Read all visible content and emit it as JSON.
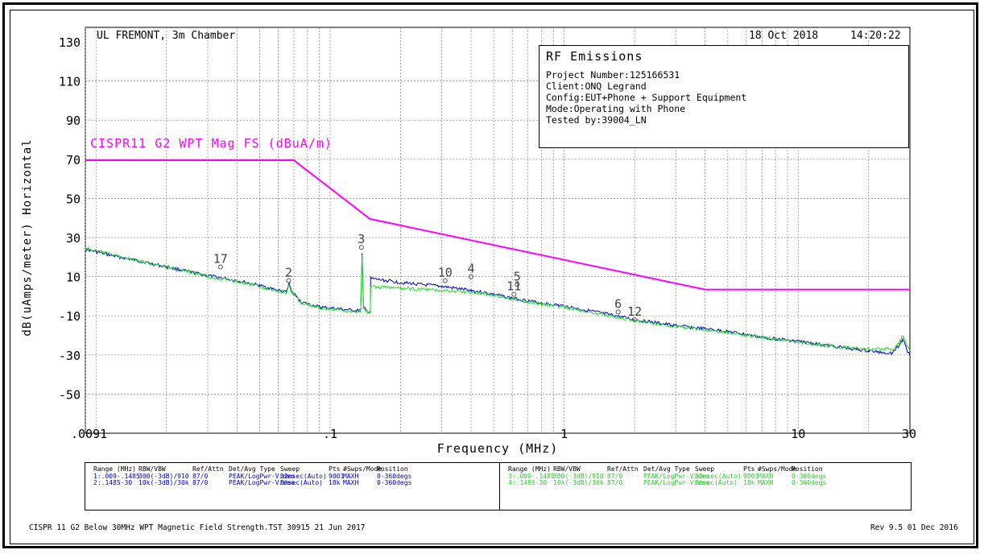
{
  "header": {
    "site": "UL FREMONT, 3m Chamber",
    "date": "18 Oct 2018",
    "time": "14:20:22"
  },
  "info": {
    "title": "RF Emissions",
    "lines": [
      "Project Number:125166531",
      "Client:ONQ Legrand",
      "Config:EUT+Phone + Support Equipment",
      "Mode:Operating with Phone",
      "Tested by:39004_LN"
    ]
  },
  "footer": {
    "left": "CISPR 11 G2 Below 30MHz WPT Magnetic Field Strength.TST 30915 21 Jun 2017",
    "right": "Rev 9.5 01 Dec 2016"
  },
  "sweep_table": {
    "headers": [
      "Range (MHz)",
      "RBW/VBW",
      "Ref/Attn",
      "Det/Avg Type",
      "Sweep",
      "Pts",
      "#Swps/Mode",
      "Position"
    ],
    "left_rows": [
      [
        "1:.009-.1485",
        "300(-3dB)/910",
        "87/0",
        "PEAK/LogPwr-Video",
        "32msec(Auto)",
        "9001",
        "MAXH",
        "0-360degs"
      ],
      [
        "2:.1485-30",
        "10k(-3dB)/30k",
        "87/0",
        "PEAK/LogPwr-Video",
        "8msec(Auto)",
        "18k",
        "MAXH",
        "0-360degs"
      ]
    ],
    "right_rows": [
      [
        "3:.009-.1485",
        "300(-3dB)/910",
        "87/0",
        "PEAK/LogPwr-Video",
        "32msec(Auto)",
        "9001",
        "MAXH",
        "0-360degs"
      ],
      [
        "4:.1485-30",
        "10k(-3dB)/30k",
        "87/0",
        "PEAK/LogPwr-Video",
        "8msec(Auto)",
        "18k",
        "MAXH",
        "0-360degs"
      ]
    ],
    "colors": {
      "left": "#0000cc",
      "right": "#33cc33"
    }
  },
  "chart_data": {
    "type": "line",
    "xlabel": "Frequency (MHz)",
    "ylabel": "dB(uAmps/meter) Horizontal",
    "xscale": "log",
    "xlim": [
      0.009,
      30
    ],
    "ylim": [
      -70,
      130
    ],
    "grid": true,
    "y_ticks": [
      130,
      110,
      90,
      70,
      50,
      30,
      10,
      -10,
      -30,
      -50
    ],
    "x_tick_labels": [
      {
        "value": 0.009,
        "label": ".0091"
      },
      {
        "value": 0.1,
        "label": ".1"
      },
      {
        "value": 1,
        "label": "1"
      },
      {
        "value": 10,
        "label": "10"
      },
      {
        "value": 30,
        "label": "30"
      }
    ],
    "limit_line": {
      "name": "CISPR11 G2 WPT Mag FS (dBuA/m)",
      "color": "#ff00ff",
      "points": [
        [
          0.009,
          69.5
        ],
        [
          0.07,
          69.5
        ],
        [
          0.148,
          39.5
        ],
        [
          4,
          3.4
        ],
        [
          30,
          3.4
        ]
      ]
    },
    "series": [
      {
        "color": "#0000cc",
        "points": [
          [
            0.009,
            24
          ],
          [
            0.012,
            20.5
          ],
          [
            0.016,
            17.5
          ],
          [
            0.02,
            15
          ],
          [
            0.025,
            12.5
          ],
          [
            0.03,
            10.5
          ],
          [
            0.04,
            8
          ],
          [
            0.05,
            5.5
          ],
          [
            0.06,
            3
          ],
          [
            0.065,
            2
          ],
          [
            0.067,
            7
          ],
          [
            0.068,
            3
          ],
          [
            0.075,
            -3
          ],
          [
            0.09,
            -5.5
          ],
          [
            0.11,
            -6.5
          ],
          [
            0.13,
            -7.5
          ],
          [
            0.135,
            -7
          ],
          [
            0.137,
            22
          ],
          [
            0.139,
            -6
          ],
          [
            0.145,
            -8
          ],
          [
            0.1485,
            -8
          ],
          [
            0.149,
            9
          ],
          [
            0.2,
            7
          ],
          [
            0.3,
            5
          ],
          [
            0.4,
            3
          ],
          [
            0.5,
            1
          ],
          [
            0.6,
            -1
          ],
          [
            0.8,
            -3.5
          ],
          [
            1,
            -5
          ],
          [
            1.5,
            -9
          ],
          [
            2,
            -12
          ],
          [
            3,
            -15
          ],
          [
            5,
            -18
          ],
          [
            7,
            -21
          ],
          [
            10,
            -23
          ],
          [
            15,
            -26
          ],
          [
            20,
            -28
          ],
          [
            25,
            -29
          ],
          [
            27,
            -25
          ],
          [
            28,
            -22
          ],
          [
            29,
            -27
          ],
          [
            30,
            -30
          ]
        ]
      },
      {
        "color": "#22dd22",
        "points": [
          [
            0.009,
            24.5
          ],
          [
            0.012,
            21
          ],
          [
            0.016,
            17.5
          ],
          [
            0.02,
            15
          ],
          [
            0.025,
            12.5
          ],
          [
            0.03,
            10
          ],
          [
            0.04,
            7.5
          ],
          [
            0.05,
            5
          ],
          [
            0.06,
            2.5
          ],
          [
            0.065,
            2
          ],
          [
            0.067,
            6
          ],
          [
            0.068,
            2.5
          ],
          [
            0.075,
            -3.5
          ],
          [
            0.09,
            -6
          ],
          [
            0.11,
            -7
          ],
          [
            0.13,
            -8
          ],
          [
            0.135,
            -7.5
          ],
          [
            0.137,
            21
          ],
          [
            0.139,
            -6.5
          ],
          [
            0.145,
            -8.5
          ],
          [
            0.1485,
            -8.5
          ],
          [
            0.149,
            5
          ],
          [
            0.2,
            4
          ],
          [
            0.3,
            3
          ],
          [
            0.4,
            2
          ],
          [
            0.5,
            0.5
          ],
          [
            0.6,
            -1.5
          ],
          [
            0.8,
            -4
          ],
          [
            1,
            -5.5
          ],
          [
            1.5,
            -9.5
          ],
          [
            2,
            -12.5
          ],
          [
            3,
            -15.5
          ],
          [
            5,
            -18.5
          ],
          [
            7,
            -21
          ],
          [
            10,
            -23.5
          ],
          [
            15,
            -26
          ],
          [
            20,
            -27
          ],
          [
            25,
            -27
          ],
          [
            27,
            -24
          ],
          [
            28,
            -20
          ],
          [
            29,
            -25
          ],
          [
            30,
            -28
          ]
        ]
      }
    ],
    "markers": [
      {
        "label": "17",
        "x": 0.034,
        "y": 15
      },
      {
        "label": "2",
        "x": 0.0665,
        "y": 8
      },
      {
        "label": "3",
        "x": 0.136,
        "y": 25
      },
      {
        "label": "10",
        "x": 0.31,
        "y": 8
      },
      {
        "label": "4",
        "x": 0.4,
        "y": 10
      },
      {
        "label": "5",
        "x": 0.63,
        "y": 6
      },
      {
        "label": "11",
        "x": 0.61,
        "y": 1
      },
      {
        "label": "6",
        "x": 1.7,
        "y": -8
      },
      {
        "label": "12",
        "x": 2.0,
        "y": -12
      }
    ]
  }
}
